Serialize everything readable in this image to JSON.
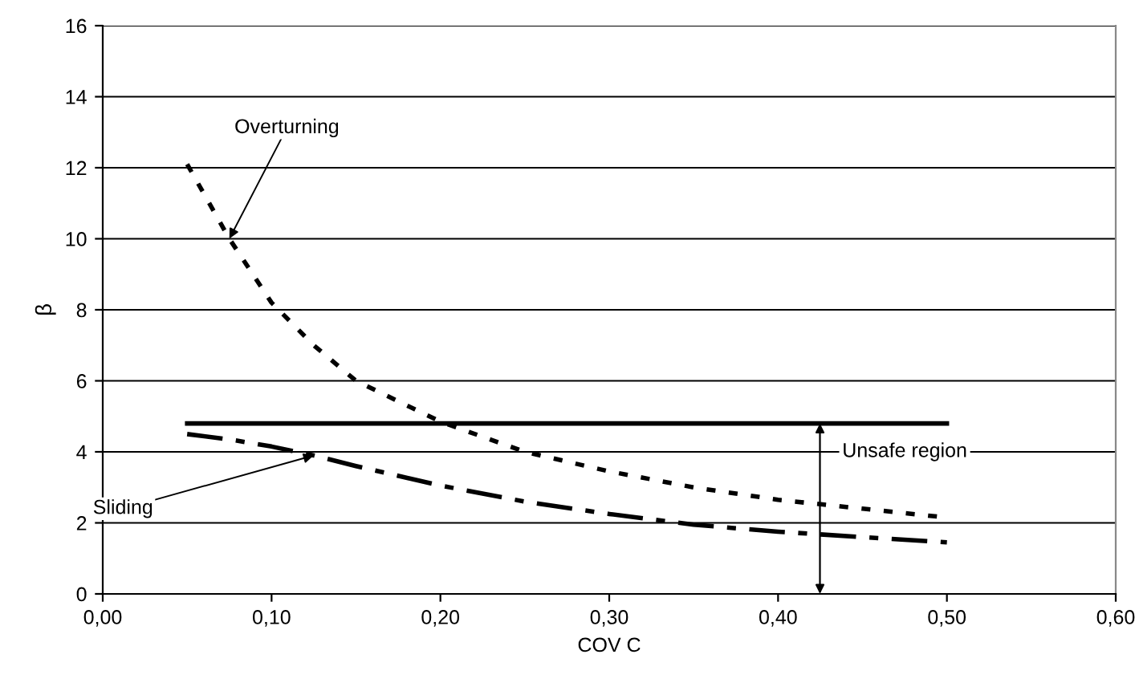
{
  "chart_data": {
    "type": "line",
    "xlabel": "COV C",
    "ylabel": "β",
    "xlim": [
      0,
      0.6
    ],
    "xticks": [
      {
        "value": 0,
        "label": "0,00"
      },
      {
        "value": 0.1,
        "label": "0,10"
      },
      {
        "value": 0.2,
        "label": "0,20"
      },
      {
        "value": 0.3,
        "label": "0,30"
      },
      {
        "value": 0.4,
        "label": "0,40"
      },
      {
        "value": 0.5,
        "label": "0,50"
      },
      {
        "value": 0.6,
        "label": "0,60"
      }
    ],
    "ylim": [
      0,
      16
    ],
    "yticks": [
      0,
      2,
      4,
      6,
      8,
      10,
      12,
      14,
      16
    ],
    "grid": "y",
    "marker": "none",
    "x": [
      0.05,
      0.075,
      0.1,
      0.125,
      0.15,
      0.2,
      0.25,
      0.3,
      0.35,
      0.4,
      0.45,
      0.5
    ],
    "series": [
      {
        "name": "Overturning",
        "color": "#000000",
        "line_style": "dotted",
        "values": [
          12.1,
          10.0,
          8.2,
          7.0,
          6.0,
          4.85,
          4.0,
          3.45,
          3.0,
          2.65,
          2.4,
          2.15
        ]
      },
      {
        "name": "Sliding",
        "color": "#000000",
        "line_style": "dashdot",
        "values": [
          4.5,
          4.35,
          4.15,
          3.9,
          3.6,
          3.05,
          2.6,
          2.25,
          1.95,
          1.75,
          1.6,
          1.45
        ]
      },
      {
        "color": "#000000",
        "line_style": "solid",
        "values": [
          4.8,
          4.8,
          4.8,
          4.8,
          4.8,
          4.8,
          4.8,
          4.8,
          4.8,
          4.8,
          4.8,
          4.8
        ]
      }
    ],
    "annotations": [
      "Unsafe region"
    ]
  }
}
